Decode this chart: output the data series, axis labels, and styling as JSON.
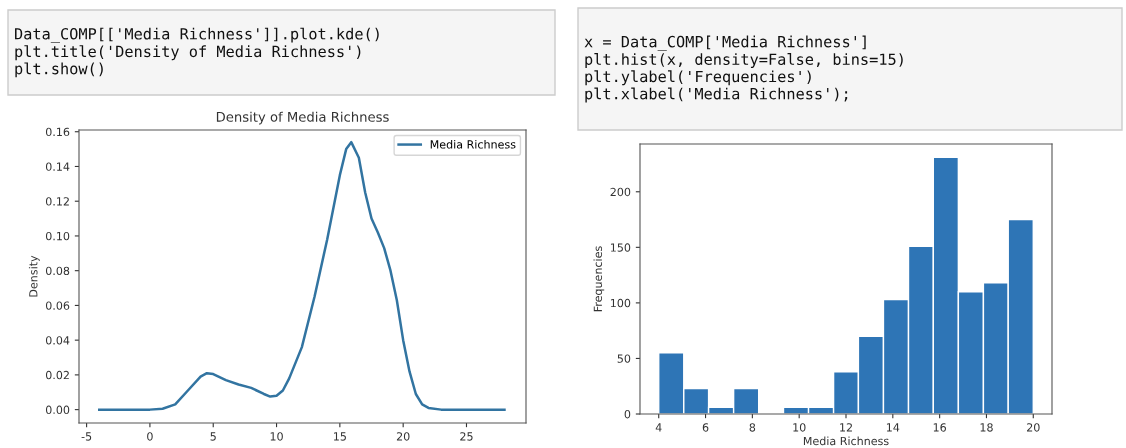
{
  "chart_data": [
    {
      "type": "line",
      "title": "Density of Media Richness",
      "ylabel": "Density",
      "legend": "top right",
      "grid": false,
      "annotations": [
        "Data_COMP[['Media Richness']].plot.kde()\nplt.title('Density of Media Richness')\nplt.show()"
      ],
      "xlim": [
        -5.6,
        29.7
      ],
      "xticks": [
        -5,
        0,
        5,
        10,
        15,
        20,
        25
      ],
      "ylim": [
        -0.0077,
        0.161
      ],
      "yticks": [
        {
          "value": 0,
          "label": "0.00"
        },
        {
          "value": 0.02,
          "label": "0.02"
        },
        {
          "value": 0.04,
          "label": "0.04"
        },
        {
          "value": 0.06,
          "label": "0.06"
        },
        {
          "value": 0.08,
          "label": "0.08"
        },
        {
          "value": 0.1,
          "label": "0.10"
        },
        {
          "value": 0.12,
          "label": "0.12"
        },
        {
          "value": 0.14,
          "label": "0.14"
        },
        {
          "value": 0.16,
          "label": "0.16"
        }
      ],
      "series": [
        {
          "name": "Media Richness",
          "color": "#3274a1",
          "x": [
            -4,
            0,
            1,
            2,
            3,
            4,
            4.5,
            5,
            6,
            7,
            8,
            9,
            9.5,
            10,
            10.5,
            11,
            12,
            13,
            14,
            15,
            15.5,
            15.9,
            16.5,
            17,
            17.5,
            18,
            18.5,
            19,
            19.5,
            20,
            20.5,
            21,
            21.5,
            22,
            23,
            25,
            28
          ],
          "values": [
            0,
            0,
            0.0005,
            0.003,
            0.011,
            0.019,
            0.021,
            0.0205,
            0.017,
            0.0145,
            0.0125,
            0.009,
            0.0075,
            0.008,
            0.011,
            0.018,
            0.036,
            0.065,
            0.098,
            0.135,
            0.15,
            0.154,
            0.145,
            0.125,
            0.11,
            0.102,
            0.093,
            0.08,
            0.063,
            0.04,
            0.022,
            0.009,
            0.003,
            0.001,
            0,
            0,
            0
          ]
        }
      ]
    },
    {
      "type": "histogram",
      "xlabel": "Media Richness",
      "ylabel": "Frequencies",
      "grid": false,
      "color": "#2e75b6",
      "annotations": [
        "x = Data_COMP['Media Richness']\nplt.hist(x, density=False, bins=15)\nplt.ylabel('Frequencies')\nplt.xlabel('Media Richness');"
      ],
      "xlim": [
        3.2,
        20.8
      ],
      "xticks": [
        4,
        6,
        8,
        10,
        12,
        14,
        16,
        18,
        20
      ],
      "ylim": [
        0,
        243
      ],
      "yticks": [
        0,
        50,
        100,
        150,
        200
      ],
      "bins": [
        4,
        5.07,
        6.13,
        7.2,
        8.27,
        9.33,
        10.4,
        11.47,
        12.53,
        13.6,
        14.67,
        15.73,
        16.8,
        17.87,
        18.93,
        20
      ],
      "values": [
        55,
        23,
        6,
        23,
        0,
        6,
        6,
        38,
        70,
        103,
        151,
        231,
        110,
        118,
        175
      ]
    }
  ]
}
